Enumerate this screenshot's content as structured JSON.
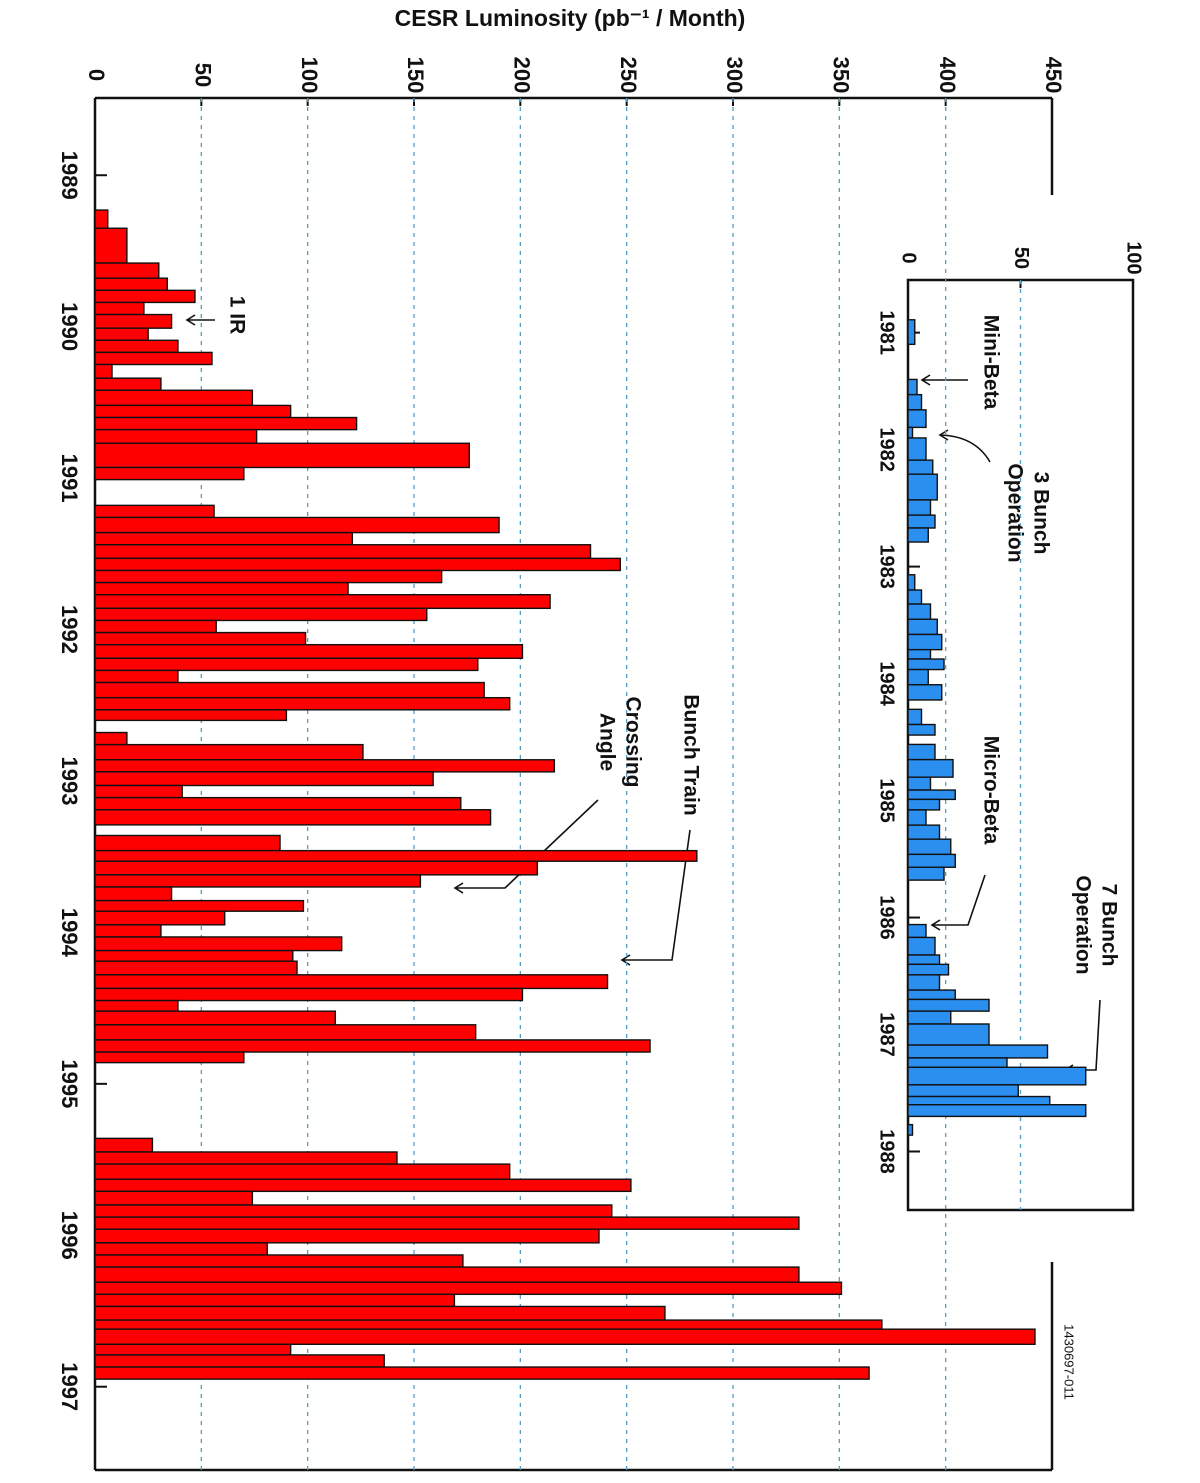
{
  "chart_data": [
    {
      "type": "histogram",
      "y_label": "CESR Luminosity (pb⁻¹ / Month)",
      "bins": [
        1989.23,
        1989.35,
        1989.58,
        1989.68,
        1989.76,
        1989.84,
        1989.92,
        1990.01,
        1990.09,
        1990.17,
        1990.25,
        1990.34,
        1990.42,
        1990.52,
        1990.6,
        1990.68,
        1990.77,
        1990.93,
        1991.01,
        1991.18,
        1991.26,
        1991.36,
        1991.44,
        1991.53,
        1991.61,
        1991.69,
        1991.77,
        1991.86,
        1991.94,
        1992.02,
        1992.1,
        1992.19,
        1992.27,
        1992.35,
        1992.45,
        1992.53,
        1992.6,
        1992.68,
        1992.76,
        1992.86,
        1992.94,
        1993.03,
        1993.11,
        1993.19,
        1993.29,
        1993.36,
        1993.46,
        1993.53,
        1993.62,
        1993.7,
        1993.79,
        1993.86,
        1993.95,
        1994.03,
        1994.12,
        1994.19,
        1994.28,
        1994.37,
        1994.45,
        1994.52,
        1994.61,
        1994.71,
        1994.79,
        1994.86,
        1995.36,
        1995.45,
        1995.53,
        1995.63,
        1995.71,
        1995.8,
        1995.88,
        1995.96,
        1996.05,
        1996.13,
        1996.21,
        1996.31,
        1996.39,
        1996.47,
        1996.56,
        1996.62,
        1996.72,
        1996.79,
        1996.87,
        1996.95
      ],
      "values": [
        6,
        15,
        30,
        34,
        47,
        23,
        36,
        25,
        39,
        55,
        8,
        31,
        74,
        92,
        123,
        76,
        176,
        70,
        0,
        56,
        190,
        121,
        233,
        247,
        163,
        119,
        214,
        156,
        57,
        99,
        201,
        180,
        39,
        183,
        195,
        90,
        0,
        15,
        126,
        216,
        159,
        41,
        172,
        186,
        0,
        87,
        283,
        208,
        153,
        36,
        98,
        61,
        31,
        116,
        93,
        95,
        241,
        201,
        39,
        113,
        179,
        261,
        70,
        0,
        27,
        142,
        195,
        252,
        74,
        243,
        331,
        237,
        81,
        173,
        331,
        351,
        169,
        268,
        370,
        442,
        92,
        136,
        364
      ],
      "color": "#ff0000",
      "xlim": [
        1988.49,
        1997.55
      ],
      "xticks": [
        1989,
        1990,
        1991,
        1992,
        1993,
        1994,
        1995,
        1996,
        1997
      ],
      "ylim": [
        0,
        450
      ],
      "yticks": [
        0,
        50,
        100,
        150,
        200,
        250,
        300,
        350,
        400,
        450
      ],
      "grid": true,
      "annotations": [
        [
          "1 IR"
        ],
        [
          "Bunch Train"
        ],
        [
          "Crossing",
          "Angle"
        ],
        [
          "1430697-011"
        ]
      ]
    },
    {
      "type": "histogram",
      "bins": [
        1980.89,
        1981.1,
        1981.4,
        1981.53,
        1981.66,
        1981.81,
        1981.9,
        1982.09,
        1982.21,
        1982.43,
        1982.56,
        1982.67,
        1982.79,
        1983.07,
        1983.2,
        1983.32,
        1983.45,
        1983.58,
        1983.71,
        1983.79,
        1983.88,
        1984.01,
        1984.14,
        1984.22,
        1984.35,
        1984.44,
        1984.52,
        1984.65,
        1984.8,
        1984.91,
        1984.99,
        1985.08,
        1985.21,
        1985.33,
        1985.46,
        1985.57,
        1985.68,
        1986.06,
        1986.17,
        1986.32,
        1986.4,
        1986.49,
        1986.62,
        1986.7,
        1986.8,
        1986.91,
        1987.09,
        1987.2,
        1987.28,
        1987.43,
        1987.53,
        1987.6,
        1987.7,
        1987.77,
        1987.86
      ],
      "values": [
        3,
        0,
        4,
        6,
        8,
        2,
        8,
        11,
        13,
        10,
        12,
        9,
        0,
        3,
        6,
        10,
        13,
        15,
        10,
        16,
        9,
        15,
        0,
        6,
        12,
        0,
        12,
        20,
        10,
        21,
        14,
        8,
        14,
        19,
        21,
        16,
        0,
        8,
        12,
        14,
        18,
        14,
        21,
        36,
        19,
        36,
        62,
        44,
        79,
        49,
        63,
        79,
        0,
        2
      ],
      "color": "#2b8ff0",
      "xlim": [
        1980.55,
        1988.5
      ],
      "xticks": [
        1981,
        1982,
        1983,
        1984,
        1985,
        1986,
        1987,
        1988
      ],
      "ylim": [
        0,
        100
      ],
      "yticks": [
        0,
        50,
        100
      ],
      "grid": true,
      "annotations": [
        [
          "Mini-Beta"
        ],
        [
          "3 Bunch",
          "Operation"
        ],
        [
          "Micro-Beta"
        ],
        [
          "7 Bunch",
          "Operation"
        ]
      ]
    }
  ]
}
